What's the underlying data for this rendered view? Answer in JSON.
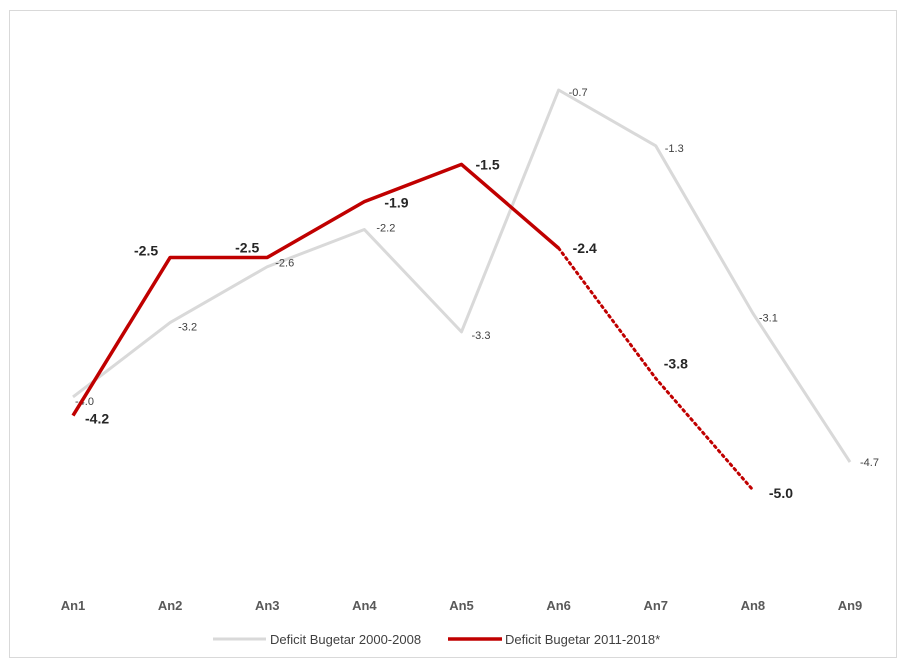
{
  "chart_data": {
    "type": "line",
    "title": "",
    "xlabel": "",
    "ylabel": "",
    "categories": [
      "An1",
      "An2",
      "An3",
      "An4",
      "An5",
      "An6",
      "An7",
      "An8",
      "An9"
    ],
    "ylim": [
      -5.8,
      -0.4
    ],
    "grid": false,
    "legend_position": "bottom",
    "series": [
      {
        "name": "Deficit Bugetar 2000-2008",
        "color": "#d9d9d9",
        "values": [
          -4.0,
          -3.2,
          -2.6,
          -2.2,
          -3.3,
          -0.7,
          -1.3,
          -3.1,
          -4.7
        ],
        "labels": [
          "-4.0",
          "-3.2",
          "-2.6",
          "-2.2",
          "-3.3",
          "-0.7",
          "-1.3",
          "-3.1",
          "-4.7"
        ]
      },
      {
        "name": "Deficit Bugetar 2011-2018*",
        "color": "#c00000",
        "values": [
          -4.2,
          -2.5,
          -2.5,
          -1.9,
          -1.5,
          -2.4,
          -3.8,
          -5.0,
          null
        ],
        "labels": [
          "-4.2",
          "-2.5",
          "-2.5",
          "-1.9",
          "-1.5",
          "-2.4",
          "-3.8",
          "-5.0",
          ""
        ],
        "dotted_from_index": 5
      }
    ]
  }
}
